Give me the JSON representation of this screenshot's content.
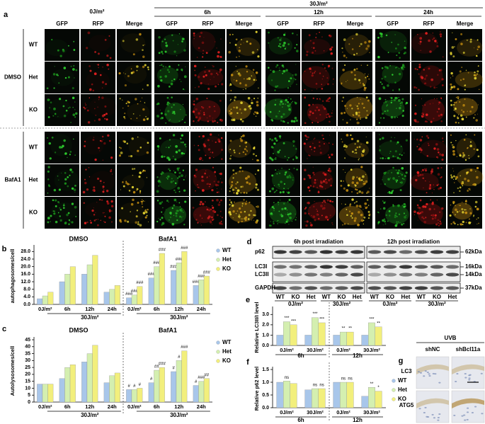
{
  "panel_a": {
    "label": "a",
    "dose_control": "0J/m²",
    "dose_uv": "30J/m²",
    "timepoints": [
      "6h",
      "12h",
      "24h"
    ],
    "channels": [
      "GFP",
      "RFP",
      "Merge"
    ],
    "treatments": [
      "DMSO",
      "BafA1"
    ],
    "genotypes": [
      "WT",
      "Het",
      "KO"
    ]
  },
  "chart_data": [
    {
      "type": "bar",
      "label": "b",
      "ylabel": "autophagosomes/cell",
      "facets": [
        "DMSO",
        "BafA1"
      ],
      "group_label": "30J/m²",
      "categories": [
        "0J/m²",
        "6h",
        "12h",
        "24h",
        "0J/m²",
        "6h",
        "12h",
        "24h"
      ],
      "ylim": [
        0,
        30
      ],
      "yticks": [
        {
          "value": 0,
          "label": "0.0"
        },
        {
          "value": 4,
          "label": "4.0"
        },
        {
          "value": 8,
          "label": "8.0"
        },
        {
          "value": 12,
          "label": "12.0"
        },
        {
          "value": 16,
          "label": "16.0"
        },
        {
          "value": 20,
          "label": "20.0"
        },
        {
          "value": 24,
          "label": "24.0"
        },
        {
          "value": 28,
          "label": "28.0"
        }
      ],
      "series": [
        {
          "name": "WT",
          "color": "#a8c6ea",
          "values": [
            3,
            12,
            16,
            6.5,
            3.5,
            14,
            18,
            10
          ],
          "markers": [
            null,
            null,
            null,
            null,
            "###",
            "###",
            "###",
            "###"
          ]
        },
        {
          "name": "Het",
          "color": "#d4efb0",
          "values": [
            4.5,
            16,
            21,
            8,
            5,
            20,
            22,
            13
          ],
          "markers": [
            null,
            null,
            null,
            null,
            "###",
            "###",
            "###",
            "###"
          ]
        },
        {
          "name": "KO",
          "color": "#f2ef7c",
          "values": [
            6.5,
            20,
            26,
            10,
            9.5,
            27,
            28,
            15
          ],
          "markers": [
            null,
            null,
            null,
            null,
            "###",
            "###",
            "###",
            "###"
          ]
        }
      ]
    },
    {
      "type": "bar",
      "label": "c",
      "ylabel": "Autolysosomes/cell",
      "facets": [
        "DMSO",
        "BafA1"
      ],
      "group_label": "30J/m²",
      "categories": [
        "0J/m²",
        "6h",
        "12h",
        "24h",
        "0J/m²",
        "6h",
        "12h",
        "24h"
      ],
      "ylim": [
        0,
        45
      ],
      "yticks": [
        0,
        5,
        10,
        15,
        20,
        25,
        30,
        35,
        40,
        45
      ],
      "series": [
        {
          "name": "WT",
          "color": "#a8c6ea",
          "values": [
            13,
            17,
            29,
            14,
            9,
            14,
            22,
            12
          ],
          "markers": [
            null,
            null,
            null,
            null,
            "#",
            "#",
            "#",
            "#"
          ]
        },
        {
          "name": "Het",
          "color": "#d4efb0",
          "values": [
            13,
            25,
            35,
            19,
            9,
            23,
            30,
            15
          ],
          "markers": [
            null,
            null,
            null,
            null,
            "#",
            "##",
            "#",
            "###"
          ]
        },
        {
          "name": "KO",
          "color": "#f2ef7c",
          "values": [
            13,
            27,
            41,
            21,
            10,
            25,
            37,
            17
          ],
          "markers": [
            null,
            null,
            null,
            null,
            "#",
            "###",
            "###",
            "##"
          ]
        }
      ]
    },
    {
      "type": "bar",
      "label": "e",
      "ylabel": "Relative LC3II/I level",
      "facets": [
        "6h",
        "12h"
      ],
      "categories": [
        "0J/m²",
        "30J/m²",
        "0J/m²",
        "30J/m²"
      ],
      "ylim": [
        0,
        3.5
      ],
      "yticks": [
        {
          "value": 0,
          "label": "0.0"
        },
        {
          "value": 1,
          "label": "1.0"
        },
        {
          "value": 2,
          "label": "2.0"
        },
        {
          "value": 3,
          "label": "3.0"
        }
      ],
      "series": [
        {
          "color": "#a8c6ea",
          "values": [
            1.0,
            1.0,
            1.0,
            1.0
          ]
        },
        {
          "color": "#d4efb0",
          "values": [
            2.3,
            2.7,
            1.3,
            2.2
          ],
          "markers": [
            "***",
            "***",
            "**",
            "***"
          ]
        },
        {
          "color": "#f2ef7c",
          "values": [
            2.0,
            2.2,
            1.3,
            1.8
          ],
          "markers": [
            "***",
            "***",
            "**",
            "**"
          ]
        }
      ]
    },
    {
      "type": "bar",
      "label": "f",
      "ylabel": "Relative p62 level",
      "facets": [
        "6h",
        "12h"
      ],
      "categories": [
        "0J/m²",
        "30J/m²",
        "0J/m²",
        "30J/m²"
      ],
      "ylim": [
        0,
        1.5
      ],
      "yticks": [
        {
          "value": 0,
          "label": "0.0"
        },
        {
          "value": 0.5,
          "label": "0.5"
        },
        {
          "value": 1,
          "label": "1.0"
        },
        {
          "value": 1.5,
          "label": "1.5"
        }
      ],
      "series": [
        {
          "name": "WT",
          "color": "#a8c6ea",
          "values": [
            1.0,
            0.7,
            1.0,
            0.45
          ]
        },
        {
          "name": "Het",
          "color": "#d4efb0",
          "values": [
            1.05,
            0.75,
            1.0,
            0.8
          ],
          "markers": [
            "ns",
            "ns",
            "ns",
            "**"
          ]
        },
        {
          "name": "KO",
          "color": "#f2ef7c",
          "values": [
            0.95,
            0.75,
            1.0,
            0.65
          ],
          "markers": [
            null,
            "ns",
            "ns",
            "*"
          ]
        }
      ]
    }
  ],
  "panel_d": {
    "label": "d",
    "blots": [
      "6h post irradiation",
      "12h post irradiation"
    ],
    "proteins": [
      "p62",
      "LC3I",
      "LC3II",
      "GAPDH"
    ],
    "sizes": [
      "62kDa",
      "16kDa",
      "14kDa",
      "37kDa"
    ],
    "lanes": [
      "WT",
      "KO",
      "Het"
    ],
    "doses": [
      "0J/m²",
      "30J/m²"
    ]
  },
  "panel_g": {
    "label": "g",
    "treatment": "UVB",
    "groups": [
      "shNC",
      "shBcl11a"
    ],
    "stains": [
      "LC3",
      "ATG5"
    ]
  }
}
